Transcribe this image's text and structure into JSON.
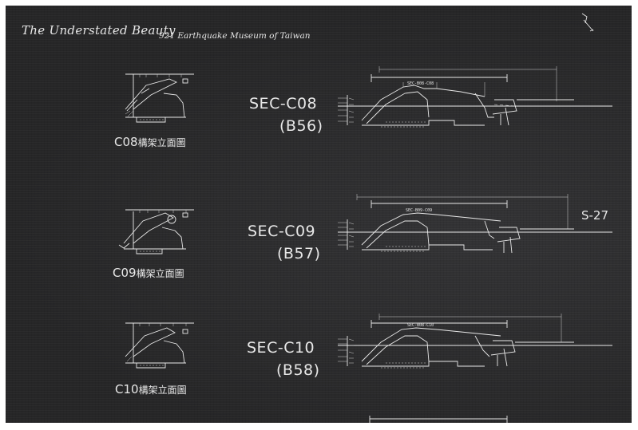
{
  "watermark": {
    "script_text": "The Understated Beauty",
    "subtitle": "921 Earthquake Museum of Taiwan"
  },
  "sections": [
    {
      "title": "SEC-C08",
      "code": "(B56)",
      "elevation_prefix": "C08",
      "elevation_cjk": "構架立面圖",
      "drawing_label": "SEC-B08-C08"
    },
    {
      "title": "SEC-C09",
      "code": "(B57)",
      "elevation_prefix": "C09",
      "elevation_cjk": "構架立面圖",
      "drawing_label": "SEC-B09-C09"
    },
    {
      "title": "SEC-C10",
      "code": "(B58)",
      "elevation_prefix": "C10",
      "elevation_cjk": "構架立面圖",
      "drawing_label": "SEC-B08-C10"
    }
  ],
  "side_label": "S-27",
  "colors": {
    "board": "#2b2b2c",
    "ink": "#e8e8e8",
    "border": "#ffffff"
  }
}
